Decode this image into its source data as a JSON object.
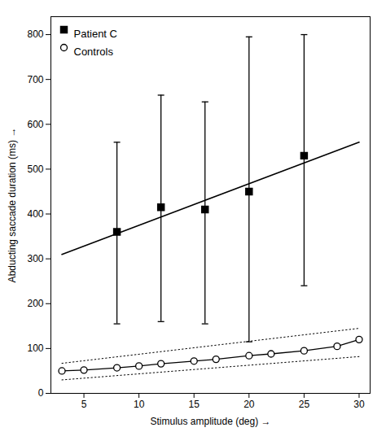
{
  "chart_data": {
    "type": "line",
    "xlabel": "Stimulus amplitude (deg)",
    "ylabel": "Abducting saccade duration (ms)",
    "xlim": [
      2,
      31
    ],
    "ylim": [
      0,
      840
    ],
    "xticks": [
      5,
      10,
      15,
      20,
      25,
      30
    ],
    "yticks": [
      0,
      100,
      200,
      300,
      400,
      500,
      600,
      700,
      800
    ],
    "legend": "upper left",
    "series": [
      {
        "type": "line",
        "color": "black",
        "x": [
          3,
          30
        ],
        "values": [
          310,
          560
        ]
      },
      {
        "name": "Patient C",
        "type": "scatter",
        "marker": "square",
        "color": "black",
        "x": [
          8,
          12,
          16,
          20,
          25
        ],
        "values": [
          360,
          415,
          410,
          450,
          530
        ],
        "error_lower": [
          205,
          255,
          255,
          335,
          290
        ],
        "error_upper": [
          200,
          250,
          240,
          345,
          270
        ]
      },
      {
        "name": "Controls",
        "type": "line",
        "marker": "open_circle",
        "color": "black",
        "x": [
          3,
          5,
          8,
          10,
          12,
          15,
          17,
          20,
          22,
          25,
          28,
          30
        ],
        "values": [
          50,
          52,
          57,
          61,
          66,
          72,
          76,
          84,
          88,
          95,
          105,
          120
        ]
      },
      {
        "type": "line",
        "line_style": "dotted",
        "color": "black",
        "x": [
          3,
          30
        ],
        "values": [
          67,
          145
        ]
      },
      {
        "type": "line",
        "line_style": "dotted",
        "color": "black",
        "x": [
          3,
          30
        ],
        "values": [
          30,
          82
        ]
      }
    ]
  }
}
